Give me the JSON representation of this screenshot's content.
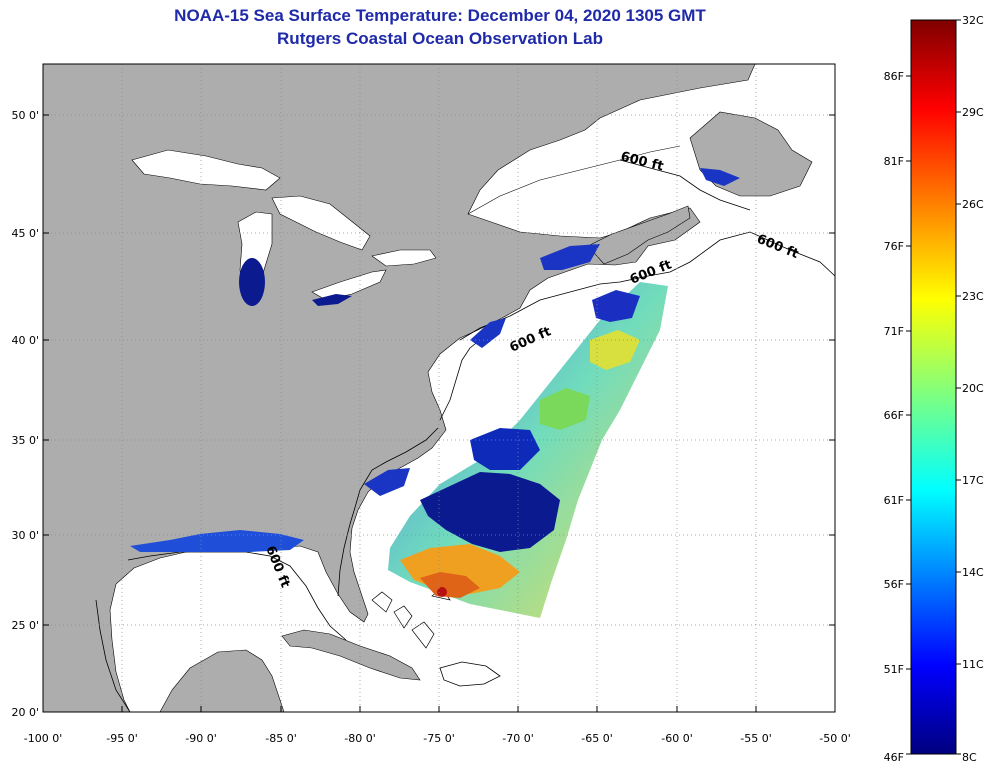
{
  "title": {
    "line1": "NOAA-15 Sea Surface Temperature:  December 04, 2020 1305 GMT",
    "line2": "Rutgers Coastal Ocean Observation Lab"
  },
  "map": {
    "lon_ticks": [
      "-100 0'",
      "-95 0'",
      "-90 0'",
      "-85 0'",
      "-80 0'",
      "-75 0'",
      "-70 0'",
      "-65 0'",
      "-60 0'",
      "-55 0'",
      "-50 0'"
    ],
    "lat_ticks": [
      "50 0'",
      "45 0'",
      "40 0'",
      "35 0'",
      "30 0'",
      "25 0'",
      "20 0'"
    ],
    "contour_labels": [
      "600 ft",
      "600 ft",
      "600 ft",
      "600 ft",
      "600 ft"
    ]
  },
  "colorbar": {
    "fahrenheit_labels": [
      "86F",
      "81F",
      "76F",
      "71F",
      "66F",
      "61F",
      "56F",
      "51F",
      "46F"
    ],
    "celsius_labels": [
      "32C",
      "29C",
      "26C",
      "23C",
      "20C",
      "17C",
      "14C",
      "11C",
      "8C"
    ]
  },
  "colors": {
    "land": "#adadad",
    "water": "#ffffff",
    "title": "#1f2aa8",
    "cold": "#0a1a8c",
    "warm": "#ff8a00"
  }
}
